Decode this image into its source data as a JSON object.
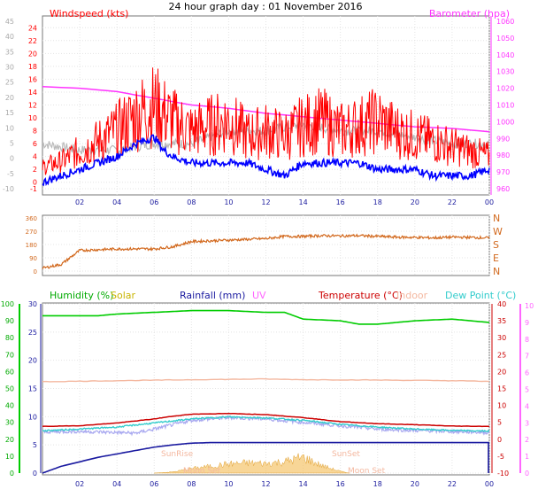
{
  "title": "24 hour graph day : 01 November 2016",
  "colors": {
    "wind": "#ff0000",
    "gust": "#ff0000",
    "avg": "#0000ff",
    "baro": "#ff33ff",
    "dir": "#d2691e",
    "humidity": "#00cc00",
    "solar": "#c8b400",
    "rain": "#1a1aa0",
    "uv": "#ff66ff",
    "temp": "#cc0000",
    "indoor": "#f4b8a0",
    "dew": "#33cccc",
    "feels": "#a8a8f0",
    "grey": "#bbbbbb"
  },
  "chart_data": [
    {
      "type": "line",
      "name": "wind",
      "left_label": "Windspeed (kts)",
      "right_label": "Barometer (hpa)",
      "x_ticks": [
        "02",
        "04",
        "06",
        "08",
        "10",
        "12",
        "14",
        "16",
        "18",
        "20",
        "22",
        "00"
      ],
      "ylim_left": [
        -1,
        25
      ],
      "ylim_right": [
        960,
        1060
      ],
      "y_ticks_left": [
        "24",
        "22",
        "20",
        "18",
        "16",
        "14",
        "12",
        "10",
        "8",
        "6",
        "4",
        "2",
        "0",
        "-1"
      ],
      "y_ticks_outer": [
        "45",
        "40",
        "35",
        "30",
        "25",
        "20",
        "15",
        "10",
        "5",
        "0",
        "-5",
        "-10"
      ],
      "y_ticks_right": [
        "1060",
        "1050",
        "1040",
        "1030",
        "1020",
        "1010",
        "1000",
        "990",
        "980",
        "970",
        "960"
      ],
      "barometer": [
        [
          0,
          1021
        ],
        [
          2,
          1020
        ],
        [
          4,
          1018
        ],
        [
          6,
          1014
        ],
        [
          8,
          1010
        ],
        [
          10,
          1008
        ],
        [
          12,
          1005
        ],
        [
          14,
          1003
        ],
        [
          16,
          1001
        ],
        [
          18,
          999
        ],
        [
          20,
          997
        ],
        [
          22,
          996
        ],
        [
          24,
          994
        ]
      ],
      "gust": [
        [
          0,
          3
        ],
        [
          1,
          4
        ],
        [
          2,
          6
        ],
        [
          3,
          8
        ],
        [
          4,
          10
        ],
        [
          5,
          13
        ],
        [
          6,
          15
        ],
        [
          7,
          12
        ],
        [
          8,
          10
        ],
        [
          9,
          11
        ],
        [
          10,
          12
        ],
        [
          11,
          9
        ],
        [
          12,
          10
        ],
        [
          13,
          9
        ],
        [
          14,
          11
        ],
        [
          15,
          12
        ],
        [
          16,
          10
        ],
        [
          17,
          11
        ],
        [
          18,
          12
        ],
        [
          19,
          10
        ],
        [
          20,
          9
        ],
        [
          21,
          8
        ],
        [
          22,
          7
        ],
        [
          23,
          6
        ],
        [
          24,
          5
        ]
      ],
      "average": [
        [
          0,
          0
        ],
        [
          1,
          1
        ],
        [
          2,
          2
        ],
        [
          3,
          3
        ],
        [
          4,
          4
        ],
        [
          5,
          6
        ],
        [
          6,
          7
        ],
        [
          6.5,
          5
        ],
        [
          7,
          4
        ],
        [
          8,
          3
        ],
        [
          9,
          3
        ],
        [
          10,
          3
        ],
        [
          11,
          3
        ],
        [
          12,
          2
        ],
        [
          13,
          1
        ],
        [
          14,
          3
        ],
        [
          15,
          3
        ],
        [
          16,
          3
        ],
        [
          17,
          3
        ],
        [
          18,
          2
        ],
        [
          19,
          2
        ],
        [
          20,
          2
        ],
        [
          21,
          1
        ],
        [
          22,
          1
        ],
        [
          23,
          1
        ],
        [
          24,
          2
        ]
      ],
      "grey": [
        [
          0,
          6
        ],
        [
          2,
          5
        ],
        [
          4,
          5
        ],
        [
          6,
          6
        ],
        [
          8,
          6
        ],
        [
          10,
          8
        ],
        [
          12,
          8
        ],
        [
          14,
          9
        ],
        [
          16,
          8
        ],
        [
          18,
          8
        ],
        [
          20,
          7
        ],
        [
          22,
          6
        ],
        [
          24,
          6
        ]
      ]
    },
    {
      "type": "line",
      "name": "direction",
      "y_ticks_left": [
        "360",
        "270",
        "180",
        "90",
        "0"
      ],
      "y_ticks_right": [
        "N",
        "W",
        "S",
        "E",
        "N"
      ],
      "ylim": [
        0,
        360
      ],
      "series": [
        [
          0,
          20
        ],
        [
          1,
          45
        ],
        [
          2,
          140
        ],
        [
          3,
          145
        ],
        [
          4,
          150
        ],
        [
          5,
          150
        ],
        [
          6,
          150
        ],
        [
          7,
          165
        ],
        [
          8,
          200
        ],
        [
          9,
          205
        ],
        [
          10,
          210
        ],
        [
          11,
          215
        ],
        [
          12,
          220
        ],
        [
          13,
          235
        ],
        [
          14,
          235
        ],
        [
          15,
          240
        ],
        [
          16,
          238
        ],
        [
          17,
          240
        ],
        [
          18,
          235
        ],
        [
          19,
          230
        ],
        [
          20,
          228
        ],
        [
          21,
          225
        ],
        [
          22,
          230
        ],
        [
          23,
          228
        ],
        [
          24,
          225
        ]
      ]
    },
    {
      "type": "line",
      "name": "temperature",
      "labels": [
        "Humidity (%)",
        "Solar",
        "Rainfall (mm)",
        "UV",
        "Temperature (°C)",
        "Indoor",
        "Dew Point (°C)"
      ],
      "y_ticks_outer": [
        "100",
        "90",
        "80",
        "70",
        "60",
        "50",
        "40",
        "30",
        "20",
        "10",
        "0"
      ],
      "y_ticks_left": [
        "30",
        "25",
        "20",
        "15",
        "10",
        "5",
        "0"
      ],
      "y_ticks_right": [
        "40",
        "35",
        "30",
        "25",
        "20",
        "15",
        "10",
        "5",
        "0",
        "-5",
        "-10"
      ],
      "y_ticks_uv": [
        "10",
        "9",
        "8",
        "7",
        "6",
        "5",
        "4",
        "3",
        "2",
        "1",
        "0"
      ],
      "annotations": [
        "SunRise",
        "SunSet",
        "Moon Set",
        "Moon Set"
      ],
      "humidity": [
        [
          0,
          93
        ],
        [
          3,
          93
        ],
        [
          4,
          94
        ],
        [
          8,
          96
        ],
        [
          10,
          96
        ],
        [
          12,
          95
        ],
        [
          13,
          95
        ],
        [
          14,
          91
        ],
        [
          16,
          90
        ],
        [
          17,
          88
        ],
        [
          18,
          88
        ],
        [
          19,
          89
        ],
        [
          20,
          90
        ],
        [
          22,
          91
        ],
        [
          23,
          90
        ],
        [
          24,
          89
        ]
      ],
      "indoor": [
        [
          0,
          17
        ],
        [
          4,
          17.3
        ],
        [
          8,
          17.6
        ],
        [
          12,
          17.8
        ],
        [
          14,
          17.6
        ],
        [
          18,
          17.5
        ],
        [
          22,
          17.3
        ],
        [
          24,
          17.1
        ]
      ],
      "temperature": [
        [
          0,
          3.8
        ],
        [
          2,
          4
        ],
        [
          4,
          4.8
        ],
        [
          6,
          6
        ],
        [
          7,
          6.8
        ],
        [
          8,
          7.4
        ],
        [
          10,
          7.6
        ],
        [
          12,
          7.3
        ],
        [
          14,
          6.4
        ],
        [
          16,
          5.2
        ],
        [
          18,
          4.6
        ],
        [
          20,
          4.3
        ],
        [
          22,
          3.9
        ],
        [
          24,
          3.8
        ]
      ],
      "dewpoint": [
        [
          0,
          2.5
        ],
        [
          2,
          3
        ],
        [
          4,
          3.6
        ],
        [
          6,
          4.8
        ],
        [
          8,
          6
        ],
        [
          10,
          6.6
        ],
        [
          12,
          6.3
        ],
        [
          14,
          5.6
        ],
        [
          16,
          4.4
        ],
        [
          18,
          3.6
        ],
        [
          20,
          3
        ],
        [
          22,
          2.6
        ],
        [
          24,
          2.4
        ]
      ],
      "feels": [
        [
          0,
          2.2
        ],
        [
          2,
          2.3
        ],
        [
          4,
          2
        ],
        [
          5,
          1.8
        ],
        [
          6,
          3
        ],
        [
          8,
          5.6
        ],
        [
          10,
          6.4
        ],
        [
          12,
          6
        ],
        [
          14,
          5
        ],
        [
          16,
          4
        ],
        [
          18,
          3
        ],
        [
          20,
          2.6
        ],
        [
          22,
          2.3
        ],
        [
          24,
          2
        ]
      ],
      "rain": [
        [
          0,
          0
        ],
        [
          1,
          1.2
        ],
        [
          2,
          2
        ],
        [
          3,
          2.8
        ],
        [
          4,
          3.4
        ],
        [
          5,
          4
        ],
        [
          6,
          4.6
        ],
        [
          7,
          5
        ],
        [
          8,
          5.3
        ],
        [
          9,
          5.4
        ],
        [
          24,
          5.4
        ]
      ],
      "solar": [
        [
          6,
          0
        ],
        [
          7,
          0.2
        ],
        [
          8,
          0.8
        ],
        [
          9,
          1.2
        ],
        [
          10,
          1.6
        ],
        [
          11,
          1.8
        ],
        [
          12,
          1.7
        ],
        [
          13,
          2
        ],
        [
          14,
          2.8
        ],
        [
          15,
          1.3
        ],
        [
          16,
          0.3
        ],
        [
          16.5,
          0
        ]
      ]
    }
  ]
}
